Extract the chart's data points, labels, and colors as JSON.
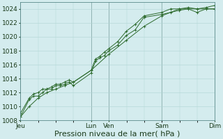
{
  "title": "",
  "xlabel": "Pression niveau de la mer( hPa )",
  "ylabel": "",
  "bg_color": "#d4ecee",
  "grid_color": "#b0d4d4",
  "line_color": "#2d6a2d",
  "vline_color": "#6a8a8a",
  "ylim": [
    1008,
    1025
  ],
  "yticks": [
    1008,
    1010,
    1012,
    1014,
    1016,
    1018,
    1020,
    1022,
    1024
  ],
  "day_labels": [
    "Jeu",
    "Lun",
    "Ven",
    "Sam",
    "Dim"
  ],
  "day_positions": [
    0.0,
    0.364,
    0.455,
    0.727,
    1.0
  ],
  "series1_x": [
    0.0,
    0.045,
    0.068,
    0.091,
    0.114,
    0.136,
    0.159,
    0.182,
    0.205,
    0.227,
    0.25,
    0.273,
    0.364,
    0.386,
    0.409,
    0.432,
    0.455,
    0.5,
    0.545,
    0.591,
    0.636,
    0.727,
    0.773,
    0.818,
    0.864,
    0.909,
    0.955,
    1.0
  ],
  "series1_y": [
    1008.5,
    1011.0,
    1011.5,
    1011.5,
    1012.0,
    1012.5,
    1012.5,
    1013.0,
    1013.0,
    1013.2,
    1013.5,
    1013.0,
    1014.8,
    1016.5,
    1017.0,
    1017.3,
    1018.0,
    1018.8,
    1020.2,
    1021.0,
    1022.8,
    1023.2,
    1023.5,
    1023.8,
    1024.0,
    1023.5,
    1024.0,
    1024.0
  ],
  "series2_x": [
    0.0,
    0.045,
    0.068,
    0.091,
    0.114,
    0.136,
    0.159,
    0.182,
    0.205,
    0.227,
    0.25,
    0.273,
    0.364,
    0.386,
    0.409,
    0.432,
    0.455,
    0.5,
    0.545,
    0.591,
    0.636,
    0.727,
    0.773,
    0.818,
    0.864,
    0.909,
    0.955,
    1.0
  ],
  "series2_y": [
    1009.0,
    1011.2,
    1011.8,
    1012.0,
    1012.5,
    1012.5,
    1012.8,
    1013.2,
    1013.2,
    1013.5,
    1013.8,
    1013.5,
    1015.2,
    1016.8,
    1017.2,
    1017.8,
    1018.3,
    1019.3,
    1020.8,
    1021.8,
    1023.0,
    1023.5,
    1024.0,
    1024.0,
    1024.2,
    1024.0,
    1024.2,
    1024.5
  ],
  "series3_x": [
    0.0,
    0.045,
    0.091,
    0.136,
    0.182,
    0.227,
    0.273,
    0.364,
    0.455,
    0.545,
    0.636,
    0.727,
    0.818,
    0.909,
    1.0
  ],
  "series3_y": [
    1008.5,
    1010.0,
    1011.2,
    1012.0,
    1012.5,
    1013.0,
    1013.5,
    1015.2,
    1017.5,
    1019.5,
    1021.5,
    1023.0,
    1024.0,
    1024.0,
    1024.0
  ],
  "xlabel_fontsize": 8,
  "tick_fontsize": 6.5
}
